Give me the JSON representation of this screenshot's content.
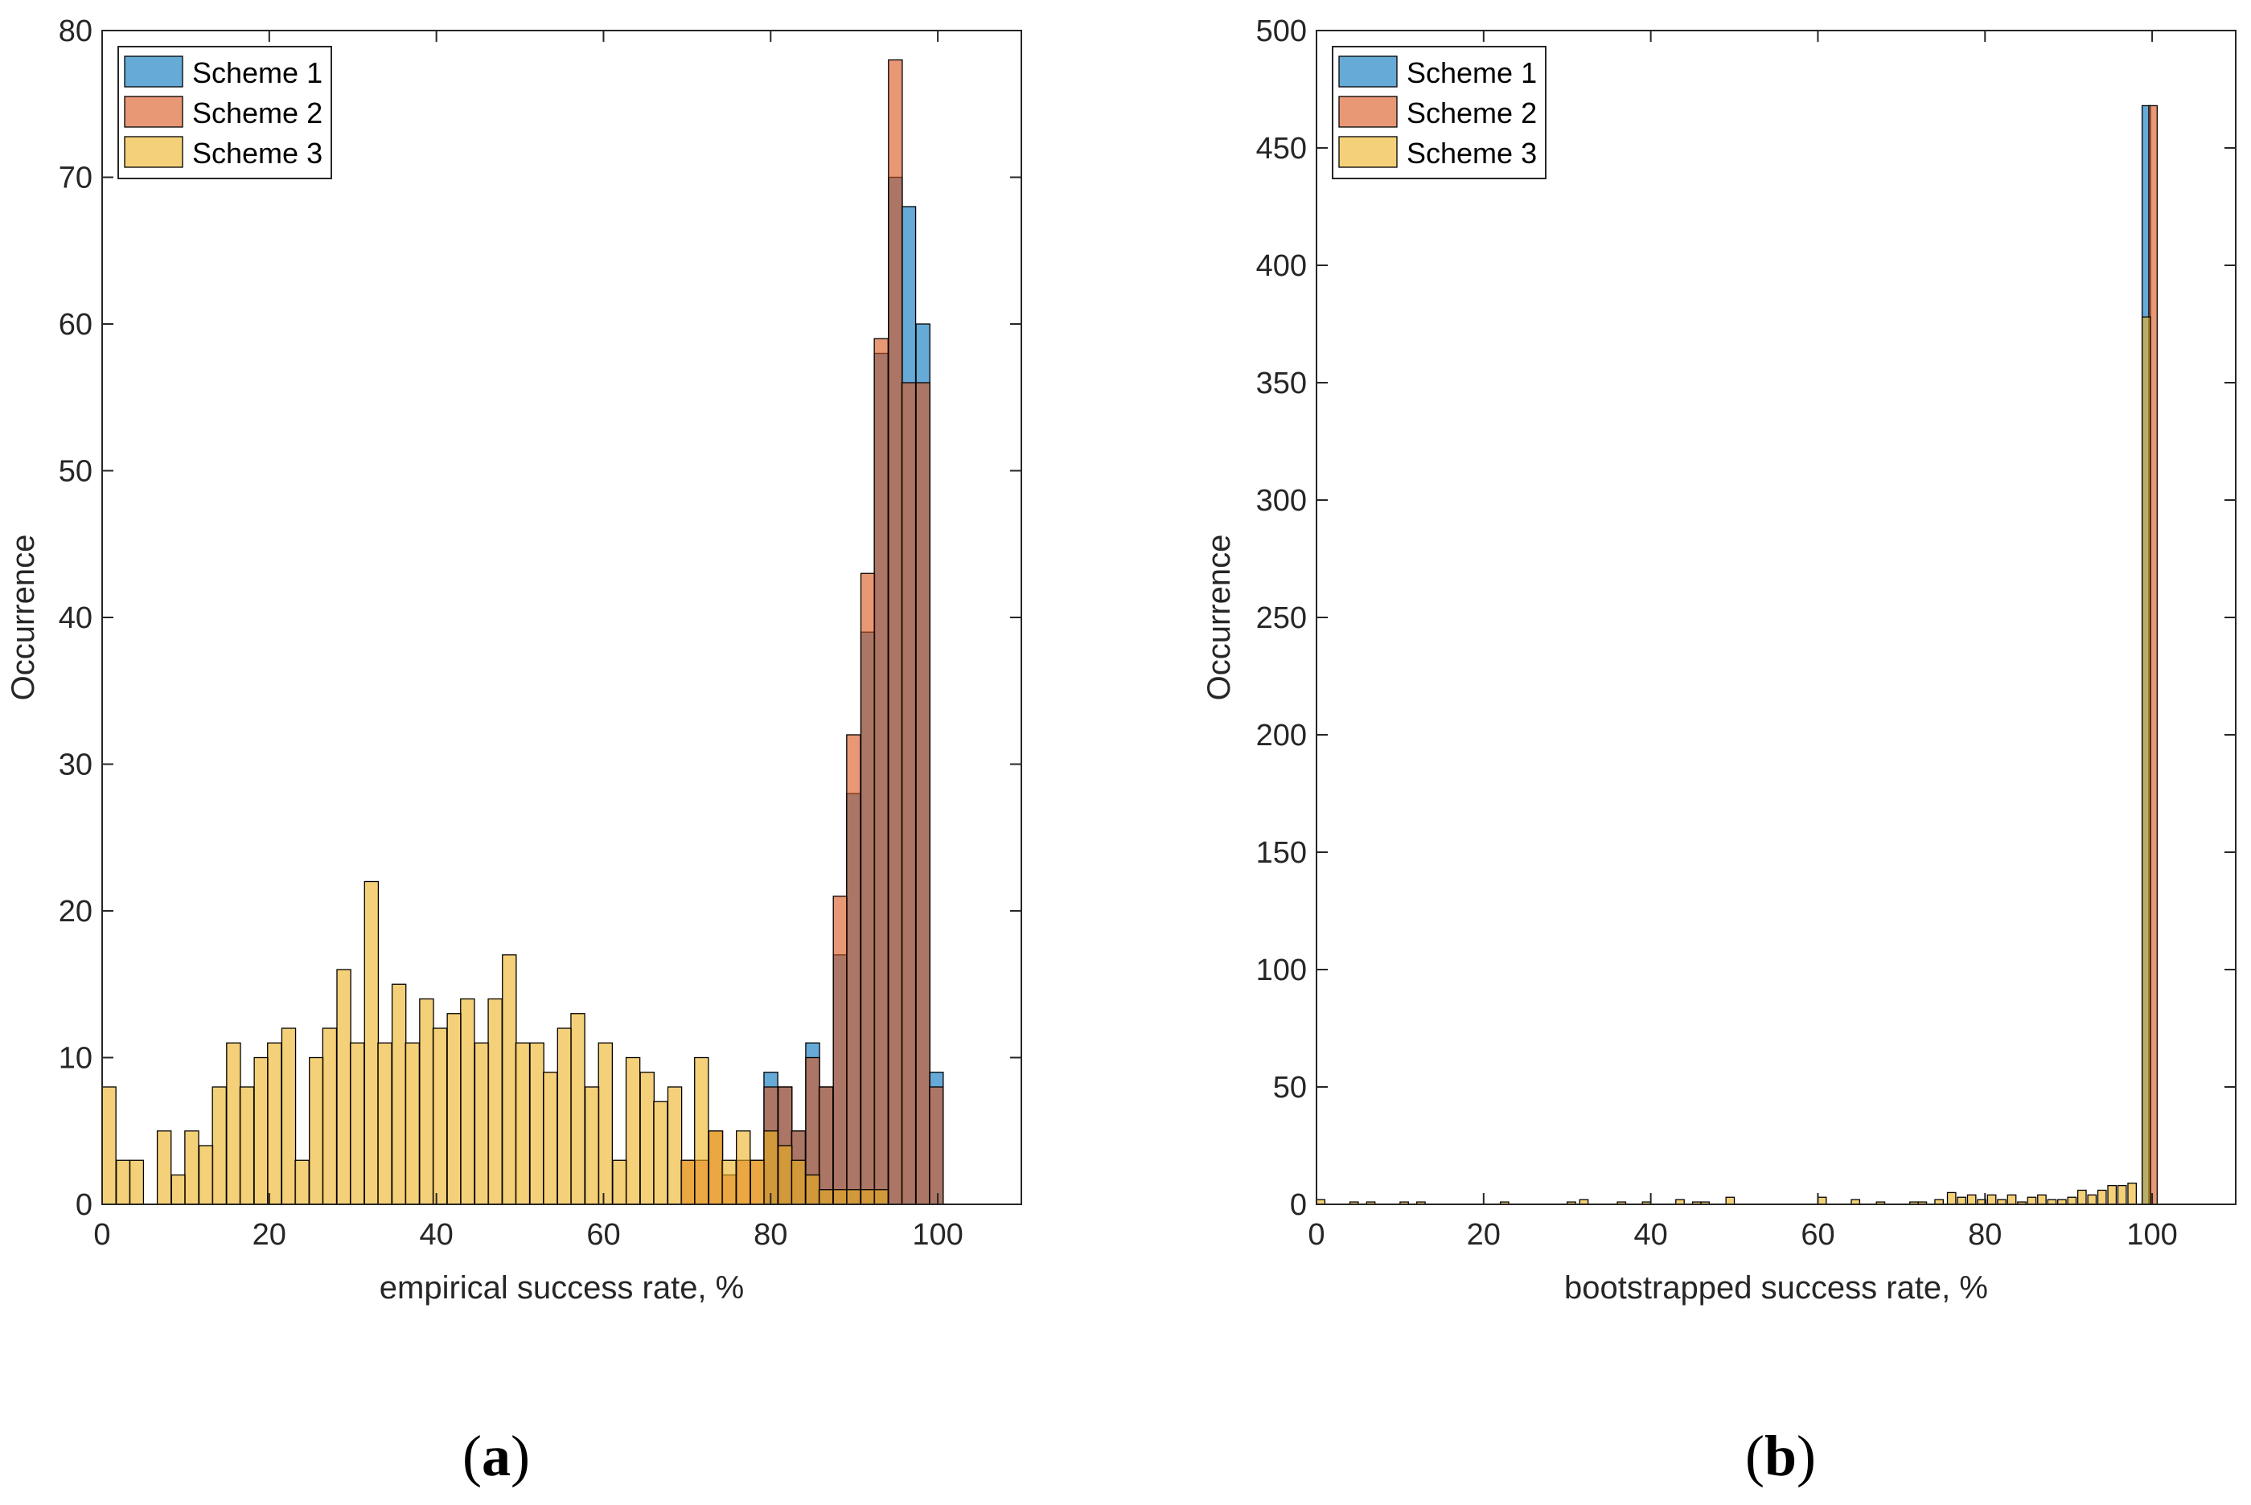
{
  "chart_data": [
    {
      "type": "bar",
      "panel_label": "a",
      "xlabel": "empirical success rate, %",
      "ylabel": "Occurrence",
      "xlim": [
        0,
        110
      ],
      "ylim": [
        0,
        80
      ],
      "xticks": [
        0,
        20,
        40,
        60,
        80,
        100
      ],
      "yticks": [
        0,
        10,
        20,
        30,
        40,
        50,
        60,
        70,
        80
      ],
      "legend_position": "top-left",
      "grid": false,
      "bin_width": 1.65,
      "series": [
        {
          "name": "Scheme 1",
          "color": "#0072BD",
          "bins": [
            {
              "x": 79.2,
              "y": 9
            },
            {
              "x": 80.9,
              "y": 8
            },
            {
              "x": 82.5,
              "y": 5
            },
            {
              "x": 84.2,
              "y": 11
            },
            {
              "x": 85.8,
              "y": 8
            },
            {
              "x": 87.5,
              "y": 17
            },
            {
              "x": 89.1,
              "y": 28
            },
            {
              "x": 90.8,
              "y": 39
            },
            {
              "x": 92.4,
              "y": 58
            },
            {
              "x": 94.1,
              "y": 70
            },
            {
              "x": 95.7,
              "y": 68
            },
            {
              "x": 97.4,
              "y": 60
            },
            {
              "x": 99.0,
              "y": 9
            }
          ]
        },
        {
          "name": "Scheme 2",
          "color": "#D95319",
          "bins": [
            {
              "x": 69.3,
              "y": 3
            },
            {
              "x": 70.9,
              "y": 3
            },
            {
              "x": 72.6,
              "y": 5
            },
            {
              "x": 74.2,
              "y": 2
            },
            {
              "x": 75.9,
              "y": 3
            },
            {
              "x": 77.6,
              "y": 3
            },
            {
              "x": 79.2,
              "y": 8
            },
            {
              "x": 80.9,
              "y": 8
            },
            {
              "x": 82.5,
              "y": 5
            },
            {
              "x": 84.2,
              "y": 10
            },
            {
              "x": 85.8,
              "y": 8
            },
            {
              "x": 87.5,
              "y": 21
            },
            {
              "x": 89.1,
              "y": 32
            },
            {
              "x": 90.8,
              "y": 43
            },
            {
              "x": 92.4,
              "y": 59
            },
            {
              "x": 94.1,
              "y": 78
            },
            {
              "x": 95.7,
              "y": 56
            },
            {
              "x": 97.4,
              "y": 56
            },
            {
              "x": 99.0,
              "y": 8
            }
          ]
        },
        {
          "name": "Scheme 3",
          "color": "#EDB120",
          "bins": [
            {
              "x": 0.0,
              "y": 8
            },
            {
              "x": 1.7,
              "y": 3
            },
            {
              "x": 3.3,
              "y": 3
            },
            {
              "x": 5.0,
              "y": 0
            },
            {
              "x": 6.6,
              "y": 5
            },
            {
              "x": 8.3,
              "y": 2
            },
            {
              "x": 9.9,
              "y": 5
            },
            {
              "x": 11.6,
              "y": 4
            },
            {
              "x": 13.2,
              "y": 8
            },
            {
              "x": 14.9,
              "y": 11
            },
            {
              "x": 16.5,
              "y": 8
            },
            {
              "x": 18.2,
              "y": 10
            },
            {
              "x": 19.8,
              "y": 11
            },
            {
              "x": 21.5,
              "y": 12
            },
            {
              "x": 23.1,
              "y": 3
            },
            {
              "x": 24.8,
              "y": 10
            },
            {
              "x": 26.4,
              "y": 12
            },
            {
              "x": 28.1,
              "y": 16
            },
            {
              "x": 29.7,
              "y": 11
            },
            {
              "x": 31.4,
              "y": 22
            },
            {
              "x": 33.0,
              "y": 11
            },
            {
              "x": 34.7,
              "y": 15
            },
            {
              "x": 36.3,
              "y": 11
            },
            {
              "x": 38.0,
              "y": 14
            },
            {
              "x": 39.6,
              "y": 12
            },
            {
              "x": 41.3,
              "y": 13
            },
            {
              "x": 42.9,
              "y": 14
            },
            {
              "x": 44.6,
              "y": 11
            },
            {
              "x": 46.2,
              "y": 14
            },
            {
              "x": 47.9,
              "y": 17
            },
            {
              "x": 49.5,
              "y": 11
            },
            {
              "x": 51.2,
              "y": 11
            },
            {
              "x": 52.8,
              "y": 9
            },
            {
              "x": 54.5,
              "y": 12
            },
            {
              "x": 56.1,
              "y": 13
            },
            {
              "x": 57.8,
              "y": 8
            },
            {
              "x": 59.4,
              "y": 11
            },
            {
              "x": 61.1,
              "y": 3
            },
            {
              "x": 62.7,
              "y": 10
            },
            {
              "x": 64.4,
              "y": 9
            },
            {
              "x": 66.0,
              "y": 7
            },
            {
              "x": 67.7,
              "y": 8
            },
            {
              "x": 69.3,
              "y": 3
            },
            {
              "x": 70.9,
              "y": 10
            },
            {
              "x": 72.6,
              "y": 5
            },
            {
              "x": 74.2,
              "y": 3
            },
            {
              "x": 75.9,
              "y": 5
            },
            {
              "x": 77.6,
              "y": 3
            },
            {
              "x": 79.2,
              "y": 5
            },
            {
              "x": 80.9,
              "y": 4
            },
            {
              "x": 82.5,
              "y": 3
            },
            {
              "x": 84.2,
              "y": 2
            },
            {
              "x": 85.8,
              "y": 1
            },
            {
              "x": 87.5,
              "y": 1
            },
            {
              "x": 89.1,
              "y": 1
            },
            {
              "x": 90.8,
              "y": 1
            },
            {
              "x": 92.4,
              "y": 1
            }
          ]
        }
      ]
    },
    {
      "type": "bar",
      "panel_label": "b",
      "xlabel": "bootstrapped success rate, %",
      "ylabel": "Occurrence",
      "xlim": [
        0,
        110
      ],
      "ylim": [
        0,
        500
      ],
      "xticks": [
        0,
        20,
        40,
        60,
        80,
        100
      ],
      "yticks": [
        0,
        50,
        100,
        150,
        200,
        250,
        300,
        350,
        400,
        450,
        500
      ],
      "legend_position": "top-left",
      "grid": false,
      "bin_width": 1.0,
      "series": [
        {
          "name": "Scheme 1",
          "color": "#0072BD",
          "bins": [
            {
              "x": 98.8,
              "y": 468
            }
          ]
        },
        {
          "name": "Scheme 2",
          "color": "#D95319",
          "bins": [
            {
              "x": 99.6,
              "y": 468
            }
          ]
        },
        {
          "name": "Scheme 3",
          "color": "#EDB120",
          "bins": [
            {
              "x": 0,
              "y": 2
            },
            {
              "x": 4,
              "y": 1
            },
            {
              "x": 6,
              "y": 1
            },
            {
              "x": 10,
              "y": 1
            },
            {
              "x": 12,
              "y": 1
            },
            {
              "x": 22,
              "y": 1
            },
            {
              "x": 30,
              "y": 1
            },
            {
              "x": 31.5,
              "y": 2
            },
            {
              "x": 36,
              "y": 1
            },
            {
              "x": 39,
              "y": 1
            },
            {
              "x": 43,
              "y": 2
            },
            {
              "x": 45,
              "y": 1
            },
            {
              "x": 46,
              "y": 1
            },
            {
              "x": 49,
              "y": 3
            },
            {
              "x": 60,
              "y": 3
            },
            {
              "x": 64,
              "y": 2
            },
            {
              "x": 67,
              "y": 1
            },
            {
              "x": 71,
              "y": 1
            },
            {
              "x": 72,
              "y": 1
            },
            {
              "x": 74,
              "y": 2
            },
            {
              "x": 75.5,
              "y": 5
            },
            {
              "x": 76.7,
              "y": 3
            },
            {
              "x": 77.9,
              "y": 4
            },
            {
              "x": 79.1,
              "y": 2
            },
            {
              "x": 80.3,
              "y": 4
            },
            {
              "x": 81.5,
              "y": 2
            },
            {
              "x": 82.7,
              "y": 4
            },
            {
              "x": 83.9,
              "y": 1
            },
            {
              "x": 85.1,
              "y": 3
            },
            {
              "x": 86.3,
              "y": 4
            },
            {
              "x": 87.5,
              "y": 2
            },
            {
              "x": 88.7,
              "y": 2
            },
            {
              "x": 89.9,
              "y": 3
            },
            {
              "x": 91.1,
              "y": 6
            },
            {
              "x": 92.3,
              "y": 4
            },
            {
              "x": 93.5,
              "y": 6
            },
            {
              "x": 94.7,
              "y": 8
            },
            {
              "x": 95.9,
              "y": 8
            },
            {
              "x": 97.1,
              "y": 9
            },
            {
              "x": 98.8,
              "y": 378
            }
          ]
        }
      ]
    }
  ]
}
